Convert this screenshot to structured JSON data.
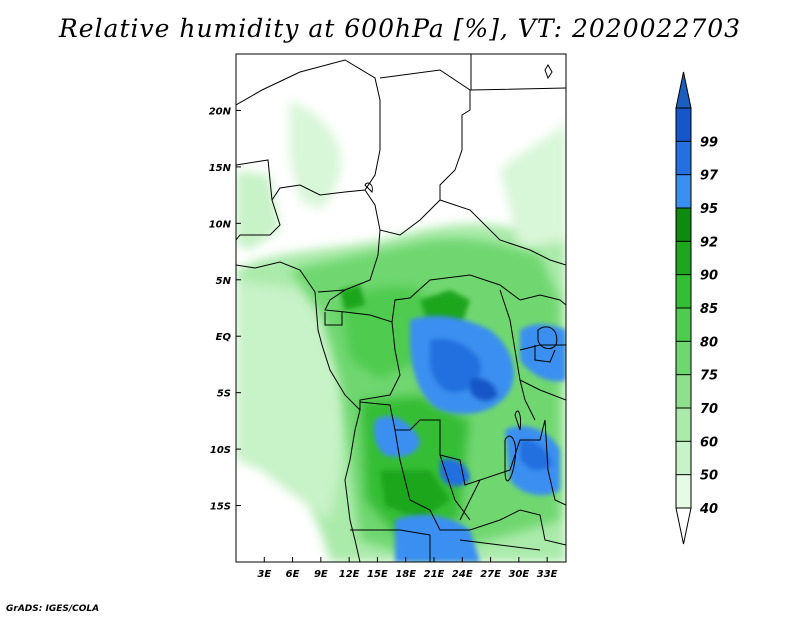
{
  "title": "Relative humidity at 600hPa [%], VT: 2020022703",
  "credit": "GrADS: IGES/COLA",
  "map": {
    "lon_range": [
      0,
      35
    ],
    "lat_range": [
      -20,
      25
    ],
    "x_ticks": [
      "3E",
      "6E",
      "9E",
      "12E",
      "15E",
      "18E",
      "21E",
      "24E",
      "27E",
      "30E",
      "33E"
    ],
    "x_tick_values": [
      3,
      6,
      9,
      12,
      15,
      18,
      21,
      24,
      27,
      30,
      33
    ],
    "y_ticks": [
      "20N",
      "15N",
      "10N",
      "5N",
      "EQ",
      "5S",
      "10S",
      "15S"
    ],
    "y_tick_values": [
      20,
      15,
      10,
      5,
      0,
      -5,
      -10,
      -15
    ]
  },
  "colorbar": {
    "levels": [
      "40",
      "50",
      "60",
      "70",
      "75",
      "80",
      "85",
      "90",
      "92",
      "95",
      "97",
      "99"
    ],
    "colors": [
      "#e6fbe6",
      "#c8f2c8",
      "#aaeaaa",
      "#8ee08e",
      "#6fd76f",
      "#4fcb4f",
      "#34be34",
      "#1fa61f",
      "#0e8a0e",
      "#3b8ff0",
      "#2470e0",
      "#1557c8"
    ],
    "under_color": "#ffffff",
    "over_color": "#1a5fc0"
  }
}
